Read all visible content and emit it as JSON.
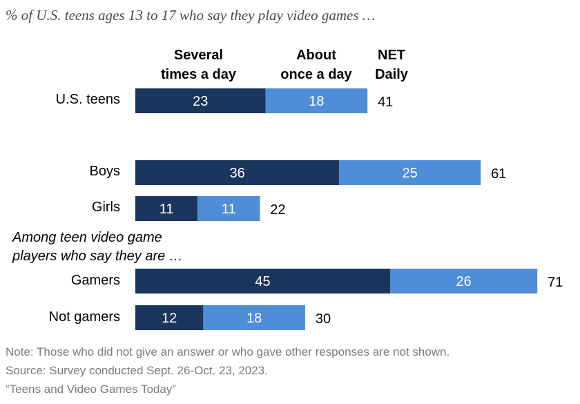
{
  "title": "% of U.S. teens ages 13 to 17 who say they play video games …",
  "subtitle_lines": [
    "Among teen video game",
    "players who say they are …"
  ],
  "colors": {
    "several": "#1b365d",
    "once": "#4f8ed6",
    "net_text": "#000000",
    "bar_text": "#ffffff"
  },
  "footnotes": {
    "note": "Note: Those who did not give an answer or who gave other responses are not shown.",
    "source": "Source: Survey conducted Sept. 26-Oct. 23, 2023.",
    "report": "“Teens and Video Games Today”"
  },
  "chart_data": {
    "type": "bar",
    "orientation": "horizontal",
    "stacked": true,
    "title": "% of U.S. teens ages 13 to 17 who say they play video games …",
    "series": [
      {
        "name": "Several\ntimes a day",
        "values": [
          23,
          36,
          11,
          45,
          12
        ]
      },
      {
        "name": "About\nonce a day",
        "values": [
          18,
          25,
          11,
          26,
          18
        ]
      }
    ],
    "net": {
      "name": "NET\nDaily",
      "values": [
        41,
        61,
        22,
        71,
        30
      ]
    },
    "categories": [
      "U.S. teens",
      "Boys",
      "Girls",
      "Gamers",
      "Not gamers"
    ],
    "xlim": [
      0,
      71
    ]
  }
}
